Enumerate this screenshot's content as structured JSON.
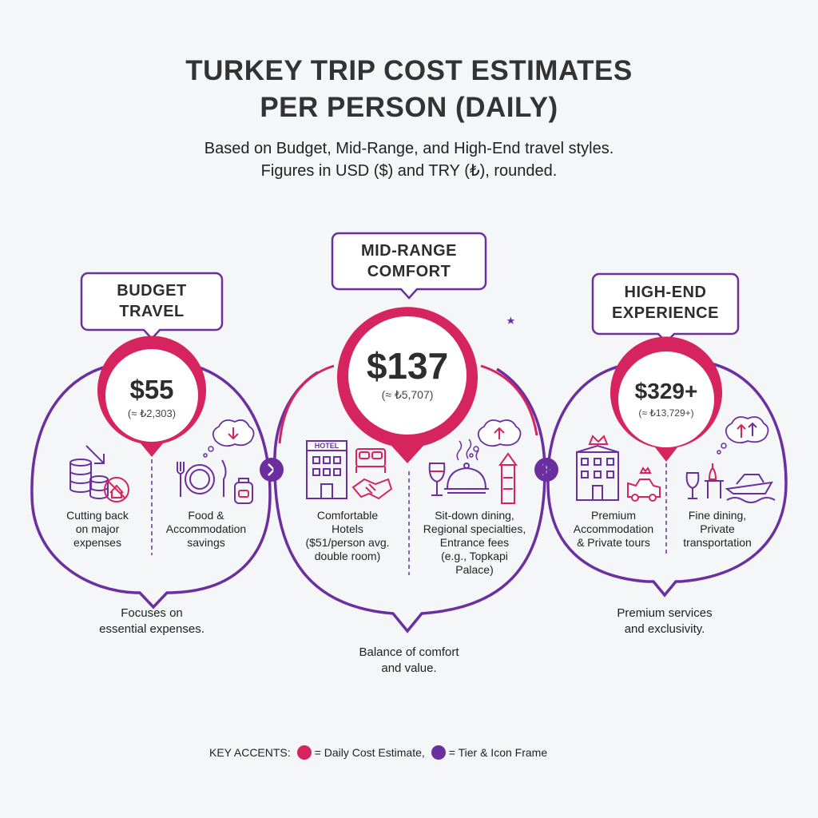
{
  "title_line1": "TURKEY TRIP COST ESTIMATES",
  "title_line2": "PER PERSON (DAILY)",
  "subtitle_line1": "Based on Budget, Mid-Range, and High-End travel styles.",
  "subtitle_line2": "Figures in USD ($) and TRY (₺), rounded.",
  "colors": {
    "pink": "#d6245f",
    "purple": "#6b2fa0",
    "background": "#f5f6f8"
  },
  "tiers": [
    {
      "label_line1": "BUDGET",
      "label_line2": "TRAVEL",
      "price": "$55",
      "price_try": "(≈ ₺2,303)",
      "left_label": [
        "Cutting back",
        "on major",
        "expenses"
      ],
      "right_label": [
        "Food &",
        "Accommodation",
        "savings"
      ],
      "left_icons": [
        "coins-stack-icon",
        "no-house-icon",
        "down-arrow-icon"
      ],
      "right_icons": [
        "plate-cutlery-icon",
        "backpack-icon",
        "thought-down-arrow-icon"
      ],
      "footer_line1": "Focuses on",
      "footer_line2": "essential expenses."
    },
    {
      "label_line1": "MID-RANGE",
      "label_line2": "COMFORT",
      "price": "$137",
      "price_try": "(≈ ₺5,707)",
      "hotel_sign": "HOTEL",
      "left_label": [
        "Comfortable",
        "Hotels",
        "($51/person avg.",
        "double room)"
      ],
      "right_label": [
        "Sit-down dining,",
        "Regional specialties,",
        "Entrance fees",
        "(e.g., Topkapi",
        "Palace)"
      ],
      "left_icons": [
        "hotel-icon",
        "bed-icon",
        "handshake-icon"
      ],
      "right_icons": [
        "wine-glass-icon",
        "cloche-icon",
        "tower-icon",
        "thought-up-arrow-icon"
      ],
      "footer_line1": "Balance of comfort",
      "footer_line2": "and value."
    },
    {
      "label_line1": "HIGH-END",
      "label_line2": "EXPERIENCE",
      "price": "$329+",
      "price_try": "(≈ ₺13,729+)",
      "left_label": [
        "Premium",
        "Accommodation",
        "& Private tours"
      ],
      "right_label": [
        "Fine dining,",
        "Private",
        "transportation"
      ],
      "left_icons": [
        "luxury-hotel-icon",
        "private-car-icon"
      ],
      "right_icons": [
        "wine-glass-icon",
        "dining-table-icon",
        "yacht-icon",
        "thought-up-arrows-icon"
      ],
      "footer_line1": "Premium services",
      "footer_line2": "and exclusivity."
    }
  ],
  "key": {
    "label": "KEY ACCENTS:",
    "pink_label": "= Daily Cost Estimate,",
    "purple_label": "= Tier & Icon Frame"
  }
}
